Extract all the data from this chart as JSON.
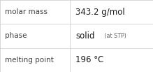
{
  "rows": [
    {
      "label": "molar mass",
      "value_main": "343.2 g/mol",
      "value_small": "",
      "small_suffix": false
    },
    {
      "label": "phase",
      "value_main": "solid",
      "value_small": " (at STP)",
      "small_suffix": true
    },
    {
      "label": "melting point",
      "value_main": "196 °C",
      "value_small": "",
      "small_suffix": false
    }
  ],
  "col_split": 0.455,
  "background_color": "#ffffff",
  "border_color": "#c8c8c8",
  "label_color": "#404040",
  "value_color": "#1a1a1a",
  "small_color": "#666666",
  "label_fontsize": 7.5,
  "value_fontsize": 8.5,
  "small_fontsize": 5.8,
  "fig_width": 2.19,
  "fig_height": 1.03,
  "dpi": 100
}
